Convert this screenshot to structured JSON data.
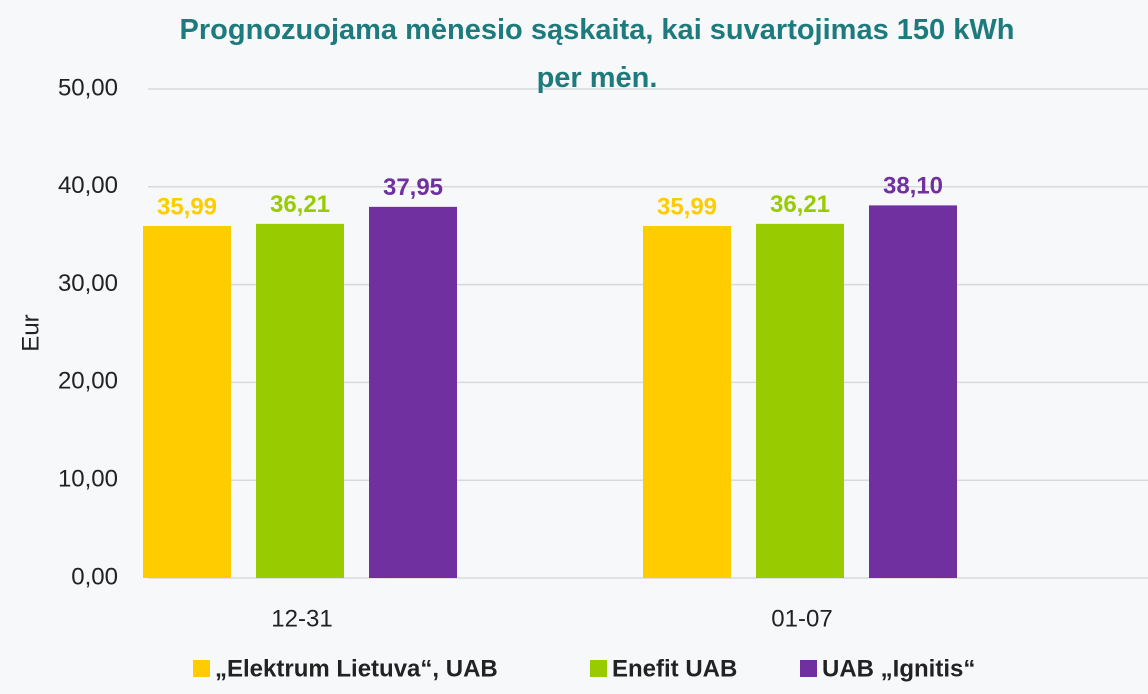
{
  "chart_data": {
    "type": "bar",
    "title": "Prognozuojama mėnesio sąskaita, kai suvartojimas 150 kWh per mėn.",
    "y_label": "Eur",
    "categories": [
      "12-31",
      "01-07"
    ],
    "series": [
      {
        "name": "„Elektrum Lietuva“, UAB",
        "color": "#ffcc00",
        "values": [
          35.99,
          35.99
        ],
        "value_labels": [
          "35,99",
          "35,99"
        ]
      },
      {
        "name": "Enefit UAB",
        "color": "#99cc00",
        "values": [
          36.21,
          36.21
        ],
        "value_labels": [
          "36,21",
          "36,21"
        ]
      },
      {
        "name": "UAB „Ignitis“",
        "color": "#7030a0",
        "values": [
          37.95,
          38.1
        ],
        "value_labels": [
          "37,95",
          "38,10"
        ]
      }
    ],
    "ylim": [
      0,
      50
    ],
    "yticks": [
      {
        "value": 0,
        "label": "0,00"
      },
      {
        "value": 10,
        "label": "10,00"
      },
      {
        "value": 20,
        "label": "20,00"
      },
      {
        "value": 30,
        "label": "30,00"
      },
      {
        "value": 40,
        "label": "40,00"
      },
      {
        "value": 50,
        "label": "50,00"
      }
    ],
    "grid": true,
    "legend": "bottom"
  }
}
